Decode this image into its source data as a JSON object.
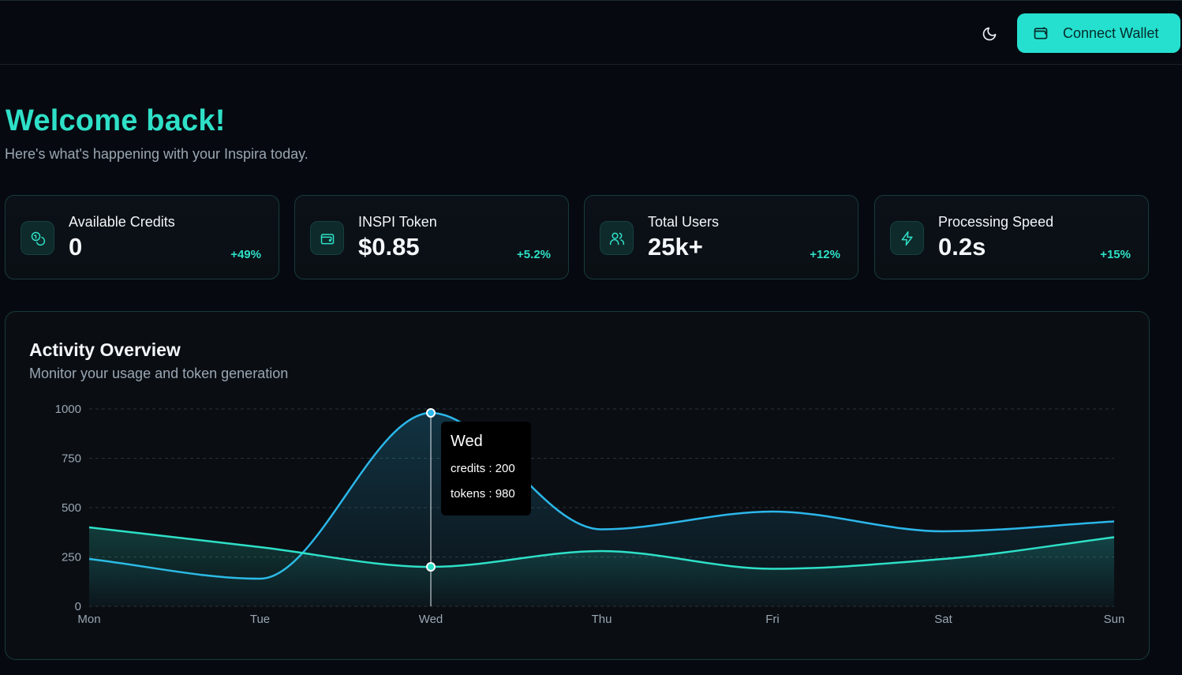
{
  "header": {
    "connect_label": "Connect Wallet"
  },
  "welcome": {
    "title": "Welcome back!",
    "subtitle": "Here's what's happening with your Inspira today."
  },
  "stats": [
    {
      "label": "Available Credits",
      "value": "0",
      "delta": "+49%",
      "icon": "coins-icon"
    },
    {
      "label": "INSPI Token",
      "value": "$0.85",
      "delta": "+5.2%",
      "icon": "wallet-icon"
    },
    {
      "label": "Total Users",
      "value": "25k+",
      "delta": "+12%",
      "icon": "users-icon"
    },
    {
      "label": "Processing Speed",
      "value": "0.2s",
      "delta": "+15%",
      "icon": "lightning-icon"
    }
  ],
  "activity": {
    "title": "Activity Overview",
    "subtitle": "Monitor your usage and token generation",
    "tooltip": {
      "day": "Wed",
      "credits_line": "credits : 200",
      "tokens_line": "tokens : 980"
    }
  },
  "colors": {
    "accent": "#25e0cf",
    "credits": "#2ee0c7",
    "tokens": "#2cb7ea"
  },
  "chart_data": {
    "type": "area",
    "x": [
      "Mon",
      "Tue",
      "Wed",
      "Thu",
      "Fri",
      "Sat",
      "Sun"
    ],
    "ylim": [
      0,
      1000
    ],
    "yticks": [
      0,
      250,
      500,
      750,
      1000
    ],
    "grid": true,
    "series": [
      {
        "name": "credits",
        "values": [
          400,
          300,
          200,
          280,
          190,
          240,
          350
        ]
      },
      {
        "name": "tokens",
        "values": [
          240,
          140,
          980,
          390,
          480,
          380,
          430
        ]
      }
    ],
    "active_index": 2
  }
}
